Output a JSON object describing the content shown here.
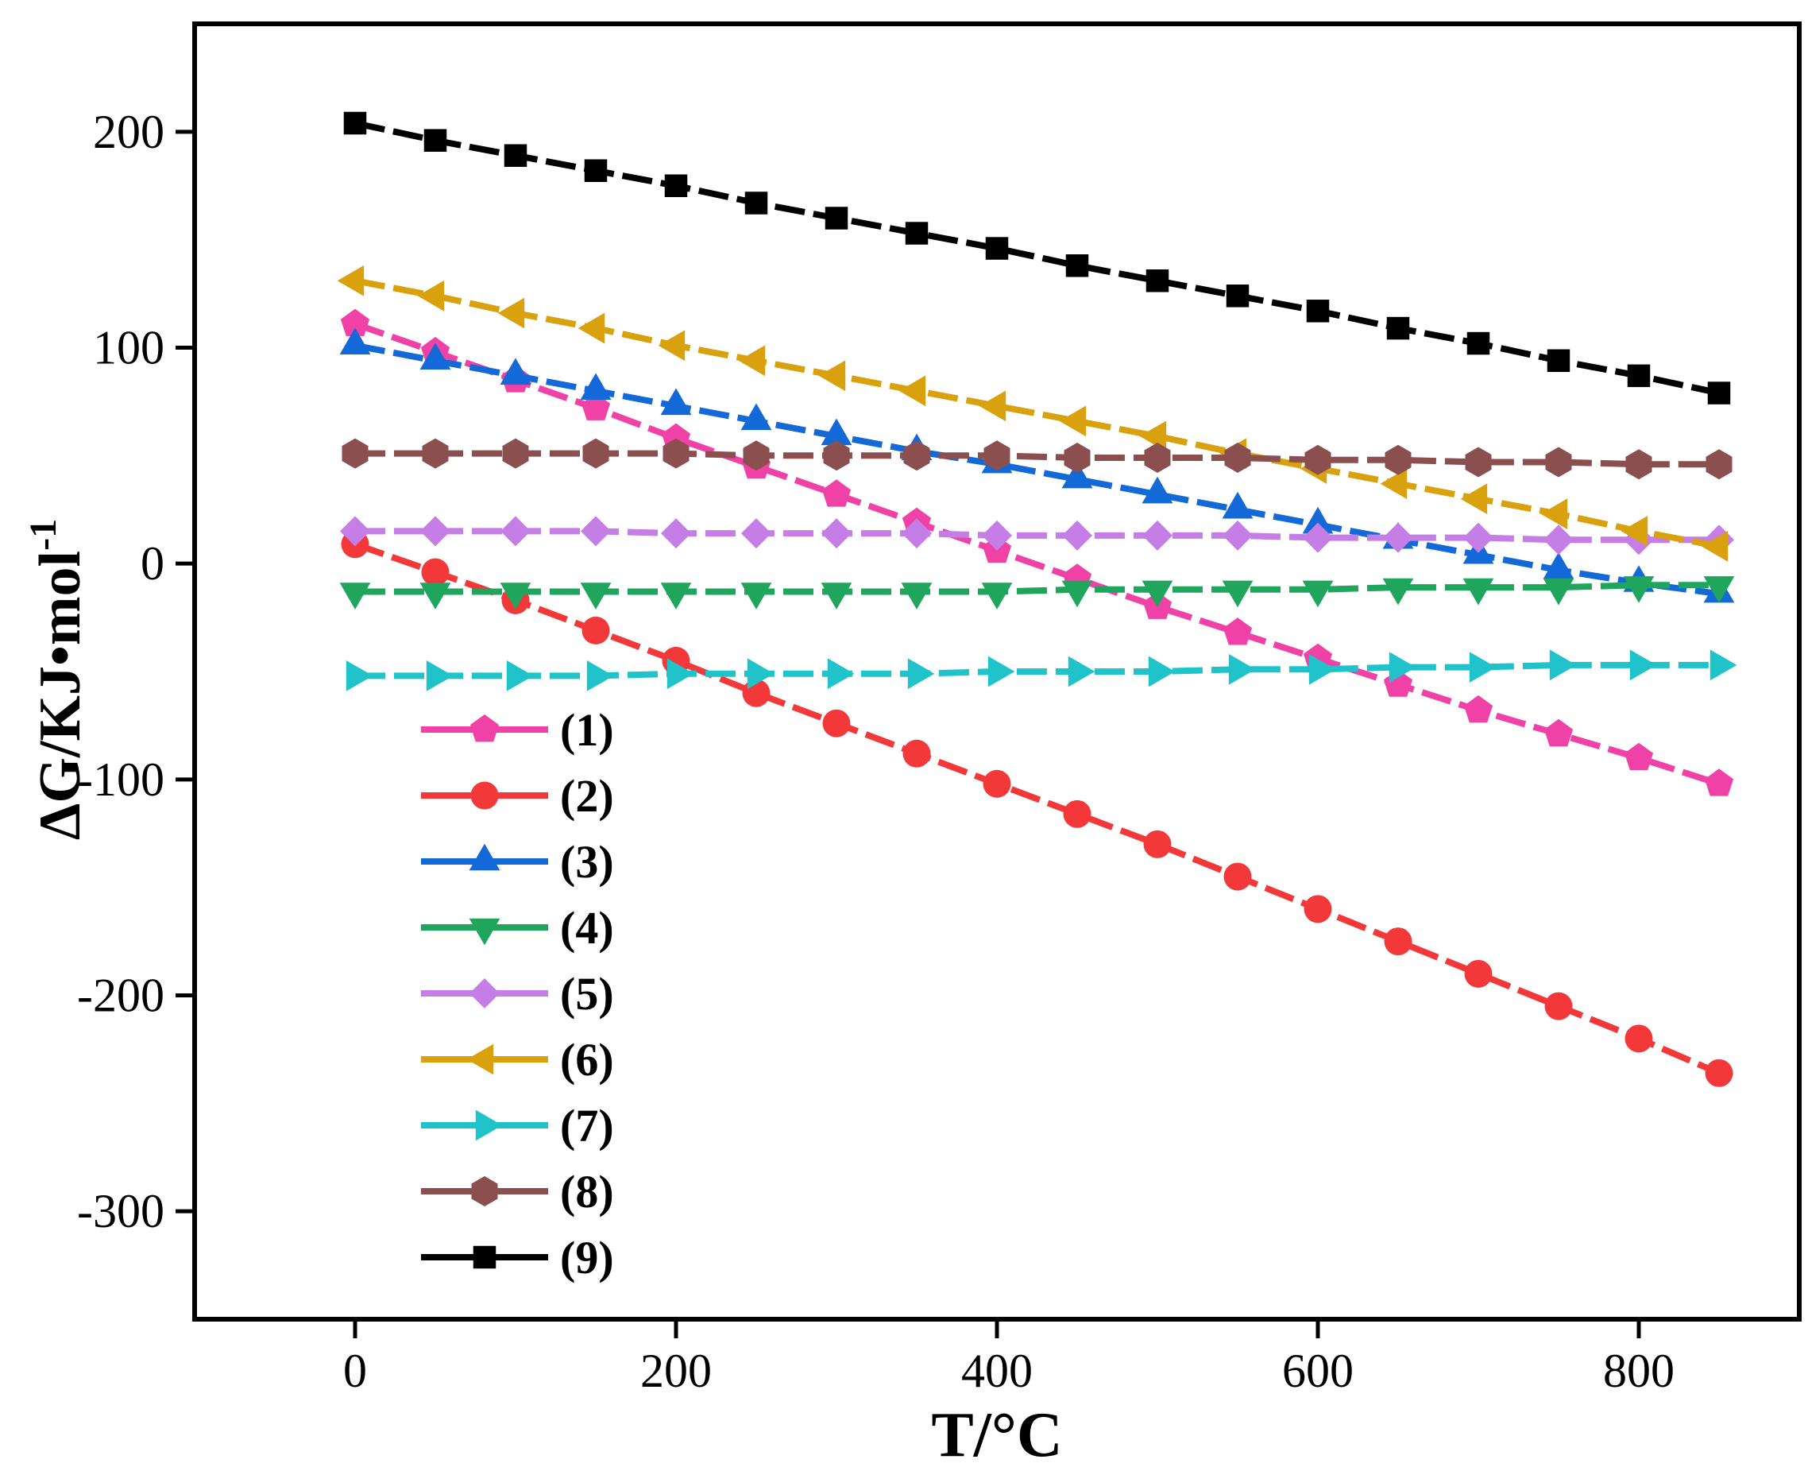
{
  "chart_data": {
    "type": "line",
    "title": "",
    "xlabel": "T/°C",
    "ylabel_main": "ΔG/KJ•mol",
    "ylabel_sup": "-1",
    "xlim": [
      -100,
      900
    ],
    "ylim": [
      -350,
      250
    ],
    "xticks": [
      0,
      200,
      400,
      600,
      800
    ],
    "xtick_labels": [
      "0",
      "200",
      "400",
      "600",
      "800"
    ],
    "yticks": [
      200,
      100,
      0,
      -100,
      -200,
      -300
    ],
    "ytick_labels": [
      "200",
      "100",
      "0",
      "-100",
      "-200",
      "-300"
    ],
    "grid": false,
    "legend_position": "left",
    "x": [
      0,
      50,
      100,
      150,
      200,
      250,
      300,
      350,
      400,
      450,
      500,
      550,
      600,
      650,
      700,
      750,
      800,
      850
    ],
    "series": [
      {
        "name": "(1)",
        "color": "#f042a6",
        "marker": "pentagon",
        "values": [
          111,
          98,
          85,
          72,
          58,
          45,
          32,
          19,
          6,
          -7,
          -20,
          -32,
          -44,
          -56,
          -68,
          -79,
          -90,
          -102
        ]
      },
      {
        "name": "(2)",
        "color": "#f23838",
        "marker": "circle",
        "values": [
          9,
          -4,
          -17,
          -31,
          -45,
          -60,
          -74,
          -88,
          -102,
          -116,
          -130,
          -145,
          -160,
          -175,
          -190,
          -205,
          -220,
          -236
        ]
      },
      {
        "name": "(3)",
        "color": "#1469d8",
        "marker": "triangle-up",
        "values": [
          101,
          94,
          87,
          80,
          73,
          66,
          59,
          52,
          46,
          39,
          32,
          25,
          18,
          11,
          4,
          -3,
          -9,
          -14
        ]
      },
      {
        "name": "(4)",
        "color": "#1fa55c",
        "marker": "triangle-down",
        "values": [
          -13,
          -13,
          -13,
          -13,
          -13,
          -13,
          -13,
          -13,
          -13,
          -12,
          -12,
          -12,
          -12,
          -11,
          -11,
          -11,
          -10,
          -10
        ]
      },
      {
        "name": "(5)",
        "color": "#c47ee6",
        "marker": "diamond",
        "values": [
          15,
          15,
          15,
          15,
          14,
          14,
          14,
          14,
          13,
          13,
          13,
          13,
          12,
          12,
          12,
          11,
          11,
          11
        ]
      },
      {
        "name": "(6)",
        "color": "#d9a10e",
        "marker": "triangle-left",
        "values": [
          131,
          124,
          116,
          109,
          101,
          94,
          87,
          80,
          73,
          66,
          59,
          51,
          44,
          37,
          30,
          23,
          15,
          8
        ]
      },
      {
        "name": "(7)",
        "color": "#1fc3c9",
        "marker": "triangle-right",
        "values": [
          -52,
          -52,
          -52,
          -52,
          -51,
          -51,
          -51,
          -51,
          -50,
          -50,
          -50,
          -49,
          -49,
          -48,
          -48,
          -47,
          -47,
          -47
        ]
      },
      {
        "name": "(8)",
        "color": "#8b4f4f",
        "marker": "hexagon",
        "values": [
          51,
          51,
          51,
          51,
          51,
          50,
          50,
          50,
          50,
          49,
          49,
          49,
          48,
          48,
          47,
          47,
          46,
          46
        ]
      },
      {
        "name": "(9)",
        "color": "#000000",
        "marker": "square",
        "values": [
          204,
          196,
          189,
          182,
          175,
          167,
          160,
          153,
          146,
          138,
          131,
          124,
          117,
          109,
          102,
          94,
          87,
          79
        ]
      }
    ]
  }
}
